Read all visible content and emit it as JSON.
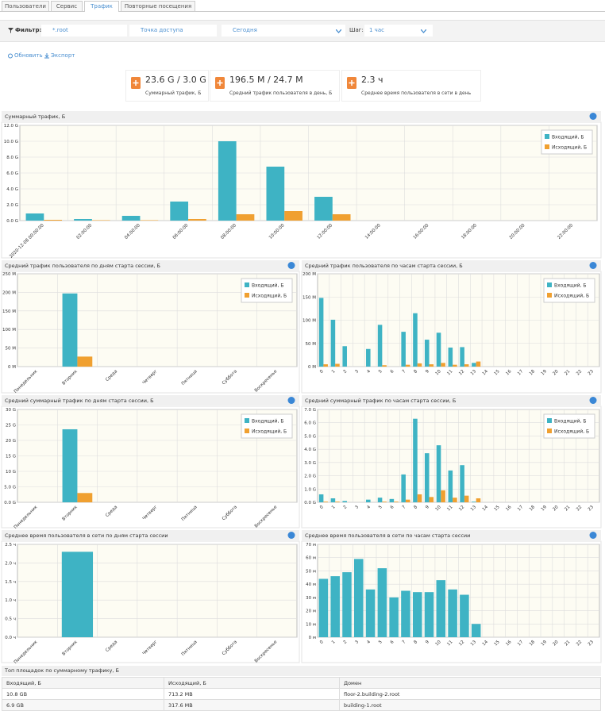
{
  "tabs": [
    "Пользователи",
    "Сервис",
    "Трафик",
    "Повторные посещения"
  ],
  "filter": {
    "label": "Фильтр:",
    "domain": "*.root",
    "access_point": "Точка доступа",
    "period": "Сегодня",
    "step_label": "Шаг:",
    "step": "1 час"
  },
  "actions": [
    "Обновить",
    "Экспорт"
  ],
  "stats": [
    {
      "value": "23.6 G / 3.0 G",
      "label": "Суммарный трафик, Б"
    },
    {
      "value": "196.5 M / 24.7 M",
      "label": "Средний трафик пользователя в день, Б"
    },
    {
      "value": "2.3 ч",
      "label": "Среднее время пользователя в сети в день"
    }
  ],
  "chart_data": [
    {
      "type": "bar",
      "title": "Суммарный трафик, Б",
      "categories": [
        "2020-12-08 00:00:00",
        "02:00:00",
        "04:00:00",
        "06:00:00",
        "08:00:00",
        "10:00:00",
        "12:00:00",
        "14:00:00",
        "16:00:00",
        "18:00:00",
        "20:00:00",
        "22:00:00"
      ],
      "series": [
        {
          "name": "Входящий, Б",
          "color": "#3eb3c4",
          "values": [
            0.9,
            0.2,
            0.6,
            2.4,
            10.0,
            6.8,
            3.0,
            0,
            0,
            0,
            0,
            0
          ]
        },
        {
          "name": "Исходящий, Б",
          "color": "#f0a030",
          "values": [
            0.1,
            0.05,
            0.05,
            0.2,
            0.8,
            1.2,
            0.8,
            0,
            0,
            0,
            0,
            0
          ]
        }
      ],
      "ylim": [
        0,
        12
      ],
      "yticks": [
        {
          "value": 0,
          "label": "0.0 G"
        },
        {
          "value": 2,
          "label": "2.0 G"
        },
        {
          "value": 4,
          "label": "4.0 G"
        },
        {
          "value": 6,
          "label": "6.0 G"
        },
        {
          "value": 8,
          "label": "8.0 G"
        },
        {
          "value": 10,
          "label": "10.0 G"
        },
        {
          "value": 12,
          "label": "12.0 G"
        }
      ],
      "grid": true,
      "legend": "upper right"
    },
    {
      "type": "bar",
      "title": "Средний трафик пользователя по дням старта сессии, Б",
      "categories": [
        "Понедельник",
        "Вторник",
        "Среда",
        "Четверг",
        "Пятница",
        "Суббота",
        "Воскресенье"
      ],
      "series": [
        {
          "name": "Входящий, Б",
          "color": "#3eb3c4",
          "values": [
            0,
            197,
            0,
            0,
            0,
            0,
            0
          ]
        },
        {
          "name": "Исходящий, Б",
          "color": "#f0a030",
          "values": [
            0,
            27,
            0,
            0,
            0,
            0,
            0
          ]
        }
      ],
      "ylim": [
        0,
        250
      ],
      "yticks": [
        {
          "value": 0,
          "label": "0 M"
        },
        {
          "value": 50,
          "label": "50 M"
        },
        {
          "value": 100,
          "label": "100 M"
        },
        {
          "value": 150,
          "label": "150 M"
        },
        {
          "value": 200,
          "label": "200 M"
        },
        {
          "value": 250,
          "label": "250 M"
        }
      ],
      "grid": true,
      "legend": "upper right"
    },
    {
      "type": "bar",
      "title": "Средний трафик пользователя по часам старта сессии, Б",
      "categories": [
        "0",
        "1",
        "2",
        "3",
        "4",
        "5",
        "6",
        "7",
        "8",
        "9",
        "10",
        "11",
        "12",
        "13",
        "14",
        "15",
        "16",
        "17",
        "18",
        "19",
        "20",
        "21",
        "22",
        "23"
      ],
      "series": [
        {
          "name": "Входящий, Б",
          "color": "#3eb3c4",
          "values": [
            148,
            101,
            44,
            0,
            38,
            90,
            0,
            75,
            115,
            58,
            73,
            41,
            42,
            8,
            0,
            0,
            0,
            0,
            0,
            0,
            0,
            0,
            0,
            0
          ]
        },
        {
          "name": "Исходящий, Б",
          "color": "#f0a030",
          "values": [
            5,
            6,
            0,
            0,
            0,
            3,
            0,
            4,
            7,
            5,
            8,
            4,
            5,
            11,
            0,
            0,
            0,
            0,
            0,
            0,
            0,
            0,
            0,
            0
          ]
        }
      ],
      "ylim": [
        0,
        200
      ],
      "yticks": [
        {
          "value": 0,
          "label": "0 M"
        },
        {
          "value": 50,
          "label": "50 M"
        },
        {
          "value": 100,
          "label": "100 M"
        },
        {
          "value": 150,
          "label": "150 M"
        },
        {
          "value": 200,
          "label": "200 M"
        }
      ],
      "grid": true,
      "legend": "upper right"
    },
    {
      "type": "bar",
      "title": "Средний суммарный трафик по дням старта сессии, Б",
      "categories": [
        "Понедельник",
        "Вторник",
        "Среда",
        "Четверг",
        "Пятница",
        "Суббота",
        "Воскресенье"
      ],
      "series": [
        {
          "name": "Входящий, Б",
          "color": "#3eb3c4",
          "values": [
            0,
            23.6,
            0,
            0,
            0,
            0,
            0
          ]
        },
        {
          "name": "Исходящий, Б",
          "color": "#f0a030",
          "values": [
            0,
            3.0,
            0,
            0,
            0,
            0,
            0
          ]
        }
      ],
      "ylim": [
        0,
        30
      ],
      "yticks": [
        {
          "value": 0,
          "label": "0.0 G"
        },
        {
          "value": 5,
          "label": "5.0 G"
        },
        {
          "value": 10,
          "label": "10 G"
        },
        {
          "value": 15,
          "label": "15 G"
        },
        {
          "value": 20,
          "label": "20 G"
        },
        {
          "value": 25,
          "label": "25 G"
        },
        {
          "value": 30,
          "label": "30 G"
        }
      ],
      "grid": true,
      "legend": "upper right"
    },
    {
      "type": "bar",
      "title": "Средний суммарный трафик по часам старта сессии, Б",
      "categories": [
        "0",
        "1",
        "2",
        "3",
        "4",
        "5",
        "6",
        "7",
        "8",
        "9",
        "10",
        "11",
        "12",
        "13",
        "14",
        "15",
        "16",
        "17",
        "18",
        "19",
        "20",
        "21",
        "22",
        "23"
      ],
      "series": [
        {
          "name": "Входящий, Б",
          "color": "#3eb3c4",
          "values": [
            0.6,
            0.3,
            0.1,
            0,
            0.2,
            0.35,
            0.25,
            2.1,
            6.3,
            3.7,
            4.3,
            2.4,
            2.8,
            0.05,
            0,
            0,
            0,
            0,
            0,
            0,
            0,
            0,
            0,
            0
          ]
        },
        {
          "name": "Исходящий, Б",
          "color": "#f0a030",
          "values": [
            0.05,
            0.05,
            0,
            0,
            0,
            0.05,
            0.05,
            0.2,
            0.6,
            0.4,
            0.9,
            0.35,
            0.5,
            0.3,
            0,
            0,
            0,
            0,
            0,
            0,
            0,
            0,
            0,
            0
          ]
        }
      ],
      "ylim": [
        0,
        7
      ],
      "yticks": [
        {
          "value": 0,
          "label": "0.0 G"
        },
        {
          "value": 1,
          "label": "1.0 G"
        },
        {
          "value": 2,
          "label": "2.0 G"
        },
        {
          "value": 3,
          "label": "3.0 G"
        },
        {
          "value": 4,
          "label": "4.0 G"
        },
        {
          "value": 5,
          "label": "5.0 G"
        },
        {
          "value": 6,
          "label": "6.0 G"
        },
        {
          "value": 7,
          "label": "7.0 G"
        }
      ],
      "grid": true,
      "legend": "upper right"
    },
    {
      "type": "bar",
      "title": "Среднее время пользователя в сети по дням старта сессии",
      "categories": [
        "Понедельник",
        "Вторник",
        "Среда",
        "Четверг",
        "Пятница",
        "Суббота",
        "Воскресенье"
      ],
      "values": [
        0,
        2.3,
        0,
        0,
        0,
        0,
        0
      ],
      "color": "#3eb3c4",
      "ylim": [
        0,
        2.5
      ],
      "yticks": [
        {
          "value": 0,
          "label": "0.0 ч"
        },
        {
          "value": 0.5,
          "label": "0.5 ч"
        },
        {
          "value": 1,
          "label": "1.0 ч"
        },
        {
          "value": 1.5,
          "label": "1.5 ч"
        },
        {
          "value": 2,
          "label": "2.0 ч"
        },
        {
          "value": 2.5,
          "label": "2.5 ч"
        }
      ],
      "grid": true
    },
    {
      "type": "bar",
      "title": "Среднее время пользователя в сети по часам старта сессии",
      "categories": [
        "0",
        "1",
        "2",
        "3",
        "4",
        "5",
        "6",
        "7",
        "8",
        "9",
        "10",
        "11",
        "12",
        "13",
        "14",
        "15",
        "16",
        "17",
        "18",
        "19",
        "20",
        "21",
        "22",
        "23"
      ],
      "values": [
        44,
        46,
        49,
        59,
        36,
        52,
        30,
        35,
        34,
        34,
        43,
        36,
        32,
        10,
        0,
        0,
        0,
        0,
        0,
        0,
        0,
        0,
        0,
        0
      ],
      "color": "#3eb3c4",
      "ylim": [
        0,
        70
      ],
      "yticks": [
        {
          "value": 0,
          "label": "0 м"
        },
        {
          "value": 10,
          "label": "10 м"
        },
        {
          "value": 20,
          "label": "20 м"
        },
        {
          "value": 30,
          "label": "30 м"
        },
        {
          "value": 40,
          "label": "40 м"
        },
        {
          "value": 50,
          "label": "50 м"
        },
        {
          "value": 60,
          "label": "60 м"
        },
        {
          "value": 70,
          "label": "70 м"
        }
      ],
      "grid": true
    }
  ],
  "table": {
    "title": "Топ площадок по суммарному трафику, Б",
    "header": [
      "Входящий, Б",
      "Исходящий, Б",
      "Домен"
    ],
    "rows": [
      [
        "10.8 GB",
        "713.2 MB",
        "floor-2.building-2.root"
      ],
      [
        "6.9 GB",
        "317.6 MB",
        "building-1.root"
      ]
    ]
  }
}
